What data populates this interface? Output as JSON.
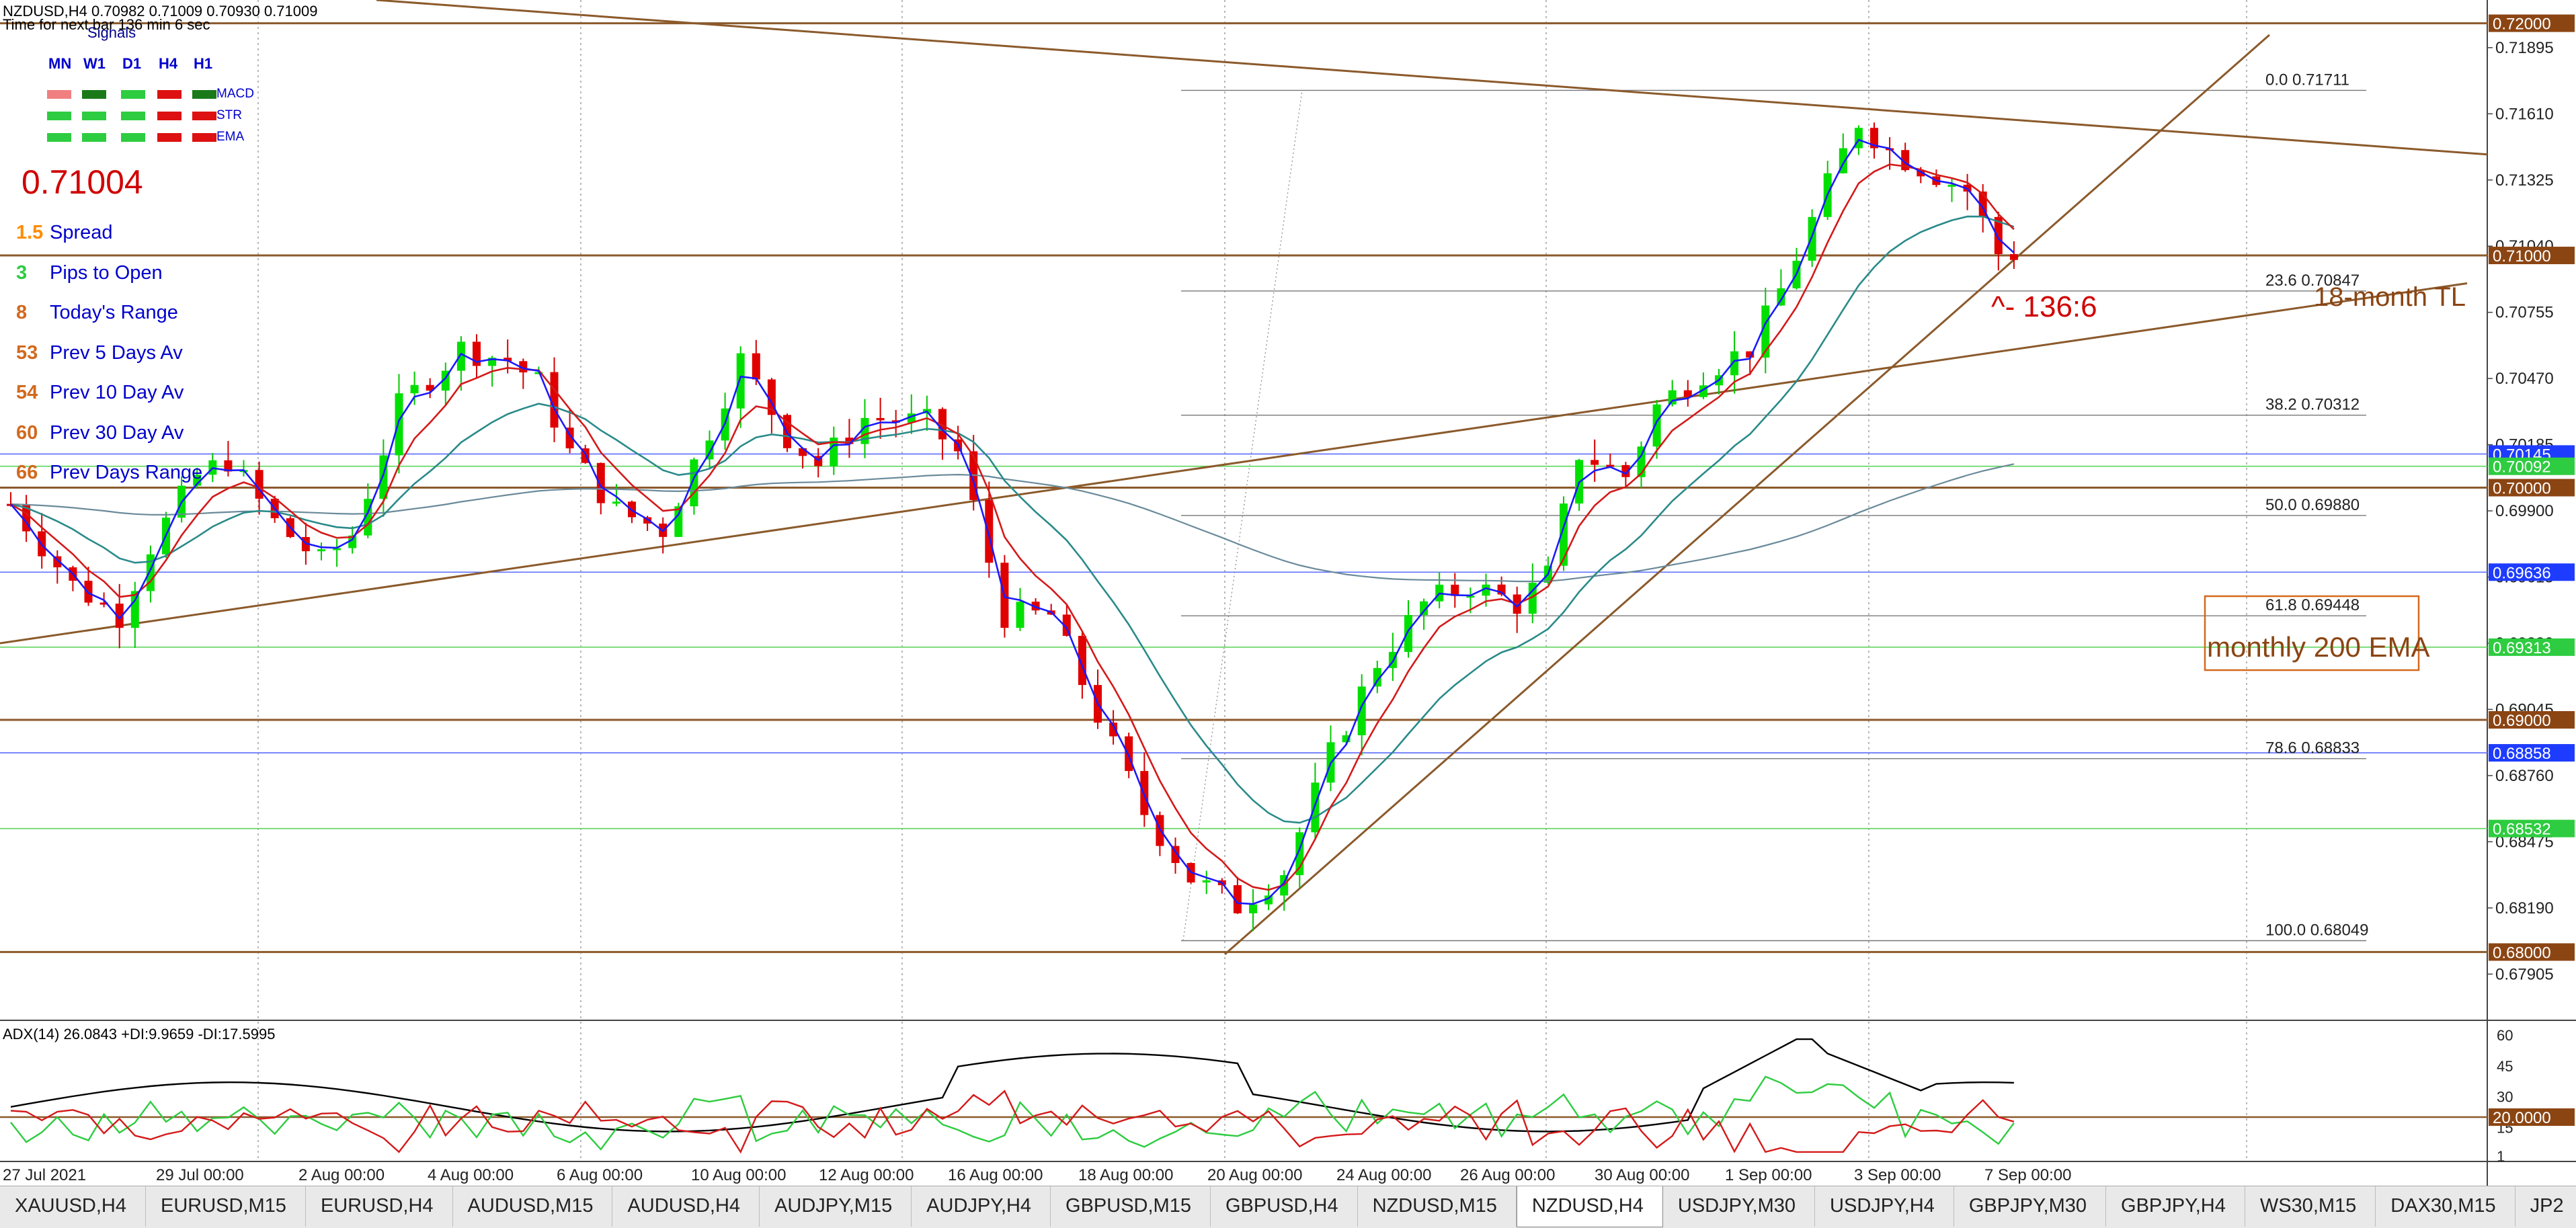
{
  "header": {
    "symbol_line": "NZDUSD,H4  0.70982 0.71009 0.70930 0.71009",
    "timer_line": "Time for next bar 136 min 6 sec"
  },
  "signals": {
    "title": "Signals",
    "timeframes": [
      "MN",
      "W1",
      "D1",
      "H4",
      "H1"
    ],
    "rows": [
      {
        "label": "MACD",
        "colors": [
          "#f08080",
          "#1a7a1a",
          "#2ecc40",
          "#dd1111",
          "#1a7a1a"
        ]
      },
      {
        "label": "STR",
        "colors": [
          "#2ecc40",
          "#2ecc40",
          "#2ecc40",
          "#dd1111",
          "#dd1111"
        ]
      },
      {
        "label": "EMA",
        "colors": [
          "#2ecc40",
          "#2ecc40",
          "#2ecc40",
          "#dd1111",
          "#dd1111"
        ]
      }
    ]
  },
  "current_price": "0.71004",
  "stats": [
    {
      "value": "1.5",
      "label": "Spread",
      "color": "#ff8c00"
    },
    {
      "value": "3",
      "label": "Pips to Open",
      "color": "#2ecc40"
    },
    {
      "value": "8",
      "label": "Today's Range",
      "color": "#d2691e"
    },
    {
      "value": "53",
      "label": "Prev 5 Days Av",
      "color": "#d2691e"
    },
    {
      "value": "54",
      "label": "Prev 10 Day Av",
      "color": "#d2691e"
    },
    {
      "value": "60",
      "label": "Prev 30 Day Av",
      "color": "#d2691e"
    },
    {
      "value": "66",
      "label": "Prev Days Range",
      "color": "#d2691e"
    }
  ],
  "indicator": {
    "label": "ADX(14) 26.0843 +DI:9.9659 -DI:17.5995",
    "ticks": [
      "60",
      "45",
      "30",
      "15",
      "1"
    ],
    "level_label": "20.0000"
  },
  "annotations": {
    "fib_levels": [
      {
        "pct": "0.0",
        "price": 0.71711
      },
      {
        "pct": "23.6",
        "price": 0.70847
      },
      {
        "pct": "38.2",
        "price": 0.70312
      },
      {
        "pct": "50.0",
        "price": 0.6988
      },
      {
        "pct": "61.8",
        "price": 0.69448
      },
      {
        "pct": "78.6",
        "price": 0.68833
      },
      {
        "pct": "100.0",
        "price": 0.68049
      }
    ],
    "pattern_label": "^- 136:6",
    "trendline_label": "18-month TL",
    "ema_label": "monthly 200 EMA"
  },
  "price_labels": [
    {
      "text": "0.72000",
      "price": 0.72,
      "color": "#8b4513"
    },
    {
      "text": "0.71000",
      "price": 0.71,
      "color": "#8b4513"
    },
    {
      "text": "0.70145",
      "price": 0.70145,
      "color": "#1e3cff"
    },
    {
      "text": "0.70092",
      "price": 0.70092,
      "color": "#2ecc40"
    },
    {
      "text": "0.70000",
      "price": 0.7,
      "color": "#8b4513"
    },
    {
      "text": "0.69636",
      "price": 0.69636,
      "color": "#1e3cff"
    },
    {
      "text": "0.69313",
      "price": 0.69313,
      "color": "#2ecc40"
    },
    {
      "text": "0.69000",
      "price": 0.69,
      "color": "#8b4513"
    },
    {
      "text": "0.68858",
      "price": 0.68858,
      "color": "#1e3cff"
    },
    {
      "text": "0.68532",
      "price": 0.68532,
      "color": "#2ecc40"
    },
    {
      "text": "0.68000",
      "price": 0.68,
      "color": "#8b4513"
    }
  ],
  "chart_data": {
    "type": "candlestick",
    "symbol": "NZDUSD,H4",
    "y_axis_ticks": [
      0.71895,
      0.7161,
      0.71325,
      0.7104,
      0.70755,
      0.7047,
      0.70185,
      0.699,
      0.69615,
      0.6933,
      0.69045,
      0.6876,
      0.68475,
      0.6819,
      0.67905
    ],
    "x_labels": [
      "27 Jul 2021",
      "29 Jul 00:00",
      "2 Aug 00:00",
      "4 Aug 00:00",
      "6 Aug 00:00",
      "10 Aug 00:00",
      "12 Aug 00:00",
      "16 Aug 00:00",
      "18 Aug 00:00",
      "20 Aug 00:00",
      "24 Aug 00:00",
      "26 Aug 00:00",
      "30 Aug 00:00",
      "1 Sep 00:00",
      "3 Sep 00:00",
      "7 Sep 00:00"
    ],
    "close_path": [
      [
        0,
        0.6993
      ],
      [
        4,
        0.6958
      ],
      [
        7,
        0.6945
      ],
      [
        9,
        0.6975
      ],
      [
        12,
        0.7005
      ],
      [
        14,
        0.7012
      ],
      [
        17,
        0.6985
      ],
      [
        20,
        0.6968
      ],
      [
        22,
        0.698
      ],
      [
        25,
        0.7035
      ],
      [
        29,
        0.706
      ],
      [
        32,
        0.7055
      ],
      [
        34,
        0.7045
      ],
      [
        36,
        0.7015
      ],
      [
        39,
        0.699
      ],
      [
        42,
        0.6982
      ],
      [
        45,
        0.7025
      ],
      [
        47,
        0.7055
      ],
      [
        50,
        0.7022
      ],
      [
        52,
        0.701
      ],
      [
        55,
        0.703
      ],
      [
        59,
        0.7028
      ],
      [
        61,
        0.7015
      ],
      [
        64,
        0.6945
      ],
      [
        67,
        0.6945
      ],
      [
        70,
        0.6902
      ],
      [
        73,
        0.686
      ],
      [
        76,
        0.6832
      ],
      [
        79,
        0.682
      ],
      [
        82,
        0.6835
      ],
      [
        85,
        0.6885
      ],
      [
        88,
        0.6925
      ],
      [
        91,
        0.695
      ],
      [
        94,
        0.6958
      ],
      [
        97,
        0.695
      ],
      [
        99,
        0.6962
      ],
      [
        101,
        0.7015
      ],
      [
        104,
        0.7005
      ],
      [
        106,
        0.7035
      ],
      [
        109,
        0.705
      ],
      [
        112,
        0.706
      ],
      [
        114,
        0.7085
      ],
      [
        117,
        0.713
      ],
      [
        119,
        0.7158
      ],
      [
        121,
        0.7145
      ],
      [
        124,
        0.7135
      ],
      [
        126,
        0.7128
      ],
      [
        128,
        0.7101
      ]
    ],
    "bar_count": 130,
    "moving_averages": [
      "blue fast MA",
      "red MA",
      "teal MA",
      "slate slow MA"
    ],
    "horizontal_levels": [
      0.72,
      0.71,
      0.70145,
      0.70092,
      0.7,
      0.69636,
      0.69313,
      0.69,
      0.68858,
      0.68532,
      0.68
    ],
    "adx": {
      "adx": 26.0843,
      "plus_di": 9.9659,
      "minus_di": 17.5995,
      "level": 20,
      "ylim": [
        1,
        60
      ]
    }
  },
  "tabs": [
    {
      "label": "XAUUSD,H4",
      "active": false
    },
    {
      "label": "EURUSD,M15",
      "active": false
    },
    {
      "label": "EURUSD,H4",
      "active": false
    },
    {
      "label": "AUDUSD,M15",
      "active": false
    },
    {
      "label": "AUDUSD,H4",
      "active": false
    },
    {
      "label": "AUDJPY,M15",
      "active": false
    },
    {
      "label": "AUDJPY,H4",
      "active": false
    },
    {
      "label": "GBPUSD,M15",
      "active": false
    },
    {
      "label": "GBPUSD,H4",
      "active": false
    },
    {
      "label": "NZDUSD,M15",
      "active": false
    },
    {
      "label": "NZDUSD,H4",
      "active": true
    },
    {
      "label": "USDJPY,M30",
      "active": false
    },
    {
      "label": "USDJPY,H4",
      "active": false
    },
    {
      "label": "GBPJPY,M30",
      "active": false
    },
    {
      "label": "GBPJPY,H4",
      "active": false
    },
    {
      "label": "WS30,M15",
      "active": false
    },
    {
      "label": "DAX30,M15",
      "active": false
    },
    {
      "label": "JP2",
      "active": false
    }
  ]
}
